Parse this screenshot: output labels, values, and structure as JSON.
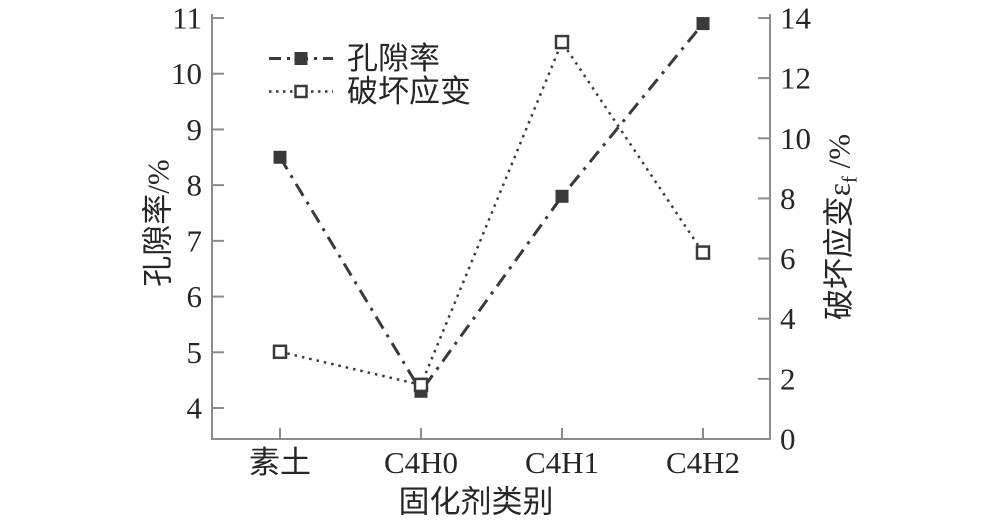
{
  "colors": {
    "line": "#3a3a3a",
    "text": "#262626",
    "axis": "#8c8c8c",
    "background": "#ffffff"
  },
  "chart_data": {
    "type": "line",
    "title": "",
    "categories": [
      "素土",
      "C4H0",
      "C4H1",
      "C4H2"
    ],
    "x_axis": {
      "label": "固化剂类别"
    },
    "left_axis": {
      "label": "孔隙率/%",
      "min": 4,
      "max": 11,
      "ticks": [
        4,
        5,
        6,
        7,
        8,
        9,
        10,
        11
      ]
    },
    "right_axis": {
      "label_prefix": "破坏应变ε",
      "label_sub": "f",
      "label_suffix": " /%",
      "min": 0,
      "max": 14,
      "ticks": [
        0,
        2,
        4,
        6,
        8,
        10,
        12,
        14
      ]
    },
    "series": [
      {
        "name": "孔隙率",
        "axis": "left",
        "line_style": "dash-dot",
        "marker": "filled-square",
        "color": "#3a3a3a",
        "values": [
          8.5,
          4.3,
          7.8,
          10.9
        ]
      },
      {
        "name": "破坏应变",
        "axis": "right",
        "line_style": "dotted",
        "marker": "open-square",
        "color": "#3a3a3a",
        "values": [
          2.9,
          1.8,
          13.2,
          6.2
        ]
      }
    ],
    "legend": {
      "position": "top-left-inside",
      "entries": [
        "孔隙率",
        "破坏应变"
      ]
    },
    "grid": false
  }
}
